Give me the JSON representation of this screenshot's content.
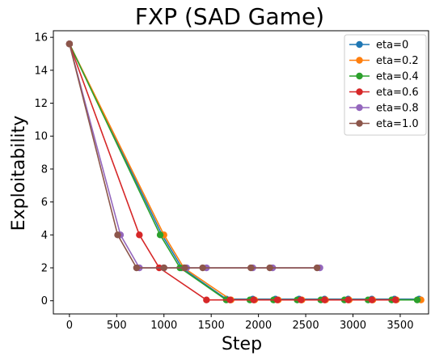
{
  "chart_data": {
    "type": "line",
    "title": "FXP (SAD Game)",
    "xlabel": "Step",
    "ylabel": "Exploitability",
    "xlim": [
      -170,
      3800
    ],
    "ylim": [
      -0.8,
      16.4
    ],
    "xticks": [
      0,
      500,
      1000,
      1500,
      2000,
      2500,
      3000,
      3500
    ],
    "yticks": [
      0,
      2,
      4,
      6,
      8,
      10,
      12,
      14,
      16
    ],
    "grid": false,
    "legend_position": "top-right",
    "series": [
      {
        "name": "eta=0",
        "color": "#1f77b4",
        "x": [
          0,
          980,
          1190,
          1660,
          1940,
          2180,
          2430,
          2700,
          2950,
          3200,
          3440,
          3700
        ],
        "y": [
          15.6,
          4.0,
          2.0,
          0.1,
          0.1,
          0.1,
          0.1,
          0.1,
          0.1,
          0.1,
          0.1,
          0.1
        ]
      },
      {
        "name": "eta=0.2",
        "color": "#ff7f0e",
        "x": [
          0,
          1000,
          1210,
          1710,
          1960,
          2210,
          2460,
          2710,
          2960,
          3210,
          3460,
          3720
        ],
        "y": [
          15.6,
          4.0,
          2.0,
          0.05,
          0.05,
          0.05,
          0.05,
          0.05,
          0.05,
          0.05,
          0.05,
          0.05
        ]
      },
      {
        "name": "eta=0.4",
        "color": "#2ca02c",
        "x": [
          0,
          960,
          1170,
          1660,
          1910,
          2160,
          2410,
          2660,
          2910,
          3160,
          3410,
          3680
        ],
        "y": [
          15.6,
          4.0,
          2.0,
          0.05,
          0.05,
          0.05,
          0.05,
          0.05,
          0.05,
          0.05,
          0.05,
          0.05
        ]
      },
      {
        "name": "eta=0.6",
        "color": "#d62728",
        "x": [
          0,
          740,
          950,
          1450,
          1700,
          1950,
          2200,
          2450,
          2700,
          2950,
          3200,
          3450
        ],
        "y": [
          15.6,
          4.0,
          2.0,
          0.05,
          0.05,
          0.05,
          0.05,
          0.05,
          0.05,
          0.05,
          0.05,
          0.05
        ]
      },
      {
        "name": "eta=0.8",
        "color": "#9467bd",
        "x": [
          0,
          540,
          740,
          1000,
          1240,
          1450,
          1940,
          2150,
          2650
        ],
        "y": [
          15.6,
          4.0,
          2.0,
          2.0,
          2.0,
          2.0,
          2.0,
          2.0,
          2.0
        ]
      },
      {
        "name": "eta=1.0",
        "color": "#8c564b",
        "x": [
          0,
          510,
          710,
          1000,
          1220,
          1410,
          1920,
          2120,
          2620
        ],
        "y": [
          15.6,
          4.0,
          2.0,
          2.0,
          2.0,
          2.0,
          2.0,
          2.0,
          2.0
        ]
      }
    ]
  }
}
